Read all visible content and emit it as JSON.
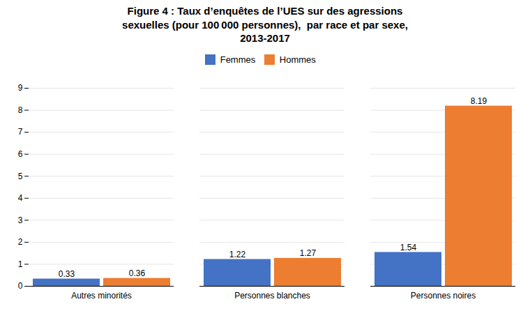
{
  "chart_data": {
    "type": "bar",
    "title": "Figure 4 : Taux d’enquêtes de l’UES sur des agressions\nsexuelles (pour 100 000 personnes),  par race et par sexe,\n2013-2017",
    "categories": [
      "Autres minorités",
      "Personnes blanches",
      "Personnes noires"
    ],
    "series": [
      {
        "name": "Femmes",
        "color": "#4472C4",
        "values": [
          0.33,
          1.22,
          1.54
        ]
      },
      {
        "name": "Hommes",
        "color": "#ED7D31",
        "values": [
          0.36,
          1.27,
          8.19
        ]
      }
    ],
    "ylim": [
      0,
      9
    ],
    "yticks": [
      0,
      1,
      2,
      3,
      4,
      5,
      6,
      7,
      8,
      9
    ],
    "grid": true,
    "legend": "top",
    "data_labels": true
  }
}
